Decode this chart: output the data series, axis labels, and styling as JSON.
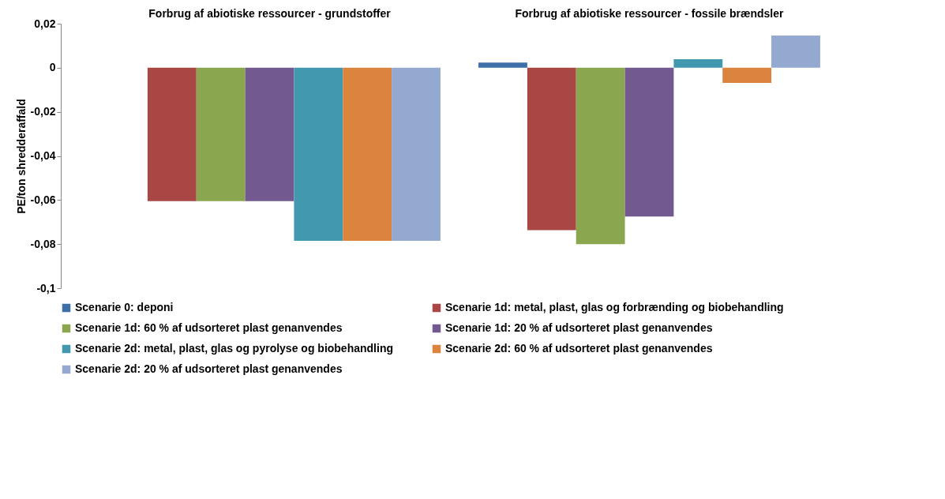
{
  "chart_data": {
    "type": "bar",
    "categories": [
      "Forbrug af abiotiske ressourcer - grundstoffer",
      "Forbrug af abiotiske ressourcer - fossile brændsler"
    ],
    "ylabel": "PE/ton shredderaffald",
    "ylim": [
      -0.1,
      0.02
    ],
    "yticks": [
      {
        "value": -0.1,
        "label": "-0,1"
      },
      {
        "value": -0.08,
        "label": "-0,08"
      },
      {
        "value": -0.06,
        "label": "-0,06"
      },
      {
        "value": -0.04,
        "label": "-0,04"
      },
      {
        "value": -0.02,
        "label": "-0,02"
      },
      0,
      {
        "value": 0.02,
        "label": "0,02"
      }
    ],
    "legend": "bottom",
    "series": [
      {
        "name": "Scenarie 0: deponi",
        "color": "#3d6fa8",
        "values": [
          0,
          0.0024
        ]
      },
      {
        "name": "Scenarie 1d: metal, plast, glas og forbrænding og biobehandling",
        "color": "#a94744",
        "values": [
          -0.0605,
          -0.0737
        ]
      },
      {
        "name": "Scenarie 1d: 60 % af udsorteret plast genanvendes",
        "color": "#8aa64f",
        "values": [
          -0.0605,
          -0.08
        ]
      },
      {
        "name": "Scenarie 1d: 20 % af udsorteret plast genanvendes",
        "color": "#725990",
        "values": [
          -0.0605,
          -0.0675
        ]
      },
      {
        "name": "Scenarie 2d: metal, plast, glas og pyrolyse og biobehandling",
        "color": "#4198af",
        "values": [
          -0.0785,
          0.0039
        ]
      },
      {
        "name": "Scenarie 2d: 60 % af udsorteret plast genanvendes",
        "color": "#db843d",
        "values": [
          -0.0785,
          -0.0069
        ]
      },
      {
        "name": "Scenarie 2d: 20 % af udsorteret plast genanvendes",
        "color": "#93a9cf",
        "values": [
          -0.0785,
          0.0146
        ]
      }
    ]
  }
}
